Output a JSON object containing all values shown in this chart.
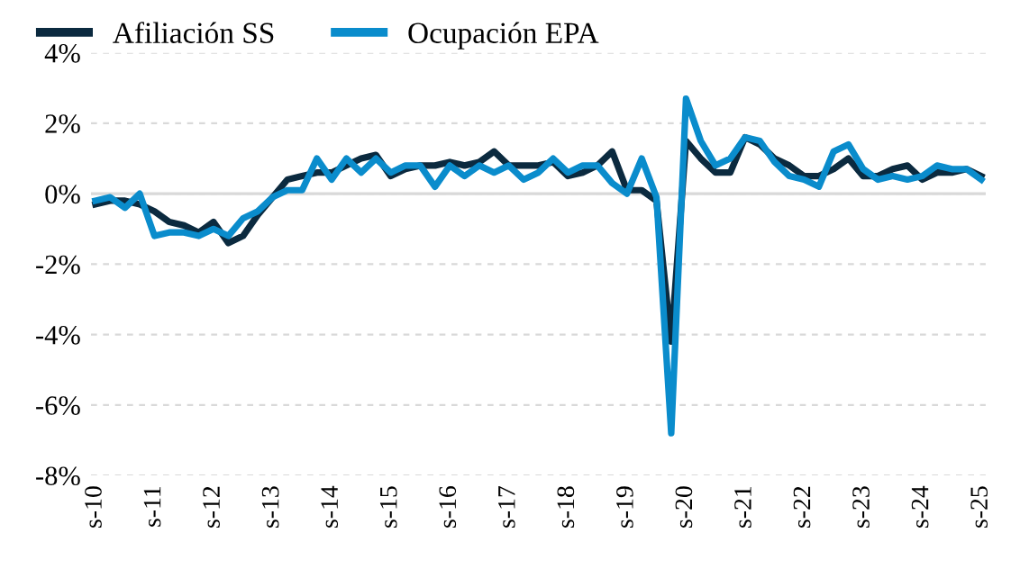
{
  "chart_data": {
    "type": "line",
    "categories": [
      "s-10",
      null,
      null,
      null,
      "s-11",
      null,
      null,
      null,
      "s-12",
      null,
      null,
      null,
      "s-13",
      null,
      null,
      null,
      "s-14",
      null,
      null,
      null,
      "s-15",
      null,
      null,
      null,
      "s-16",
      null,
      null,
      null,
      "s-17",
      null,
      null,
      null,
      "s-18",
      null,
      null,
      null,
      "s-19",
      null,
      null,
      null,
      "s-20",
      null,
      null,
      null,
      "s-21",
      null,
      null,
      null,
      "s-22",
      null,
      null,
      null,
      "s-23",
      null,
      null,
      null,
      "s-24",
      null,
      null,
      null,
      "s-25"
    ],
    "series": [
      {
        "name": "Afiliación SS",
        "color": "#0b2a3f",
        "values": [
          -0.3,
          -0.2,
          -0.2,
          -0.3,
          -0.5,
          -0.8,
          -0.9,
          -1.1,
          -0.8,
          -1.4,
          -1.2,
          -0.6,
          -0.1,
          0.4,
          0.5,
          0.6,
          0.6,
          0.8,
          1.0,
          1.1,
          0.5,
          0.7,
          0.8,
          0.8,
          0.9,
          0.8,
          0.9,
          1.2,
          0.8,
          0.8,
          0.8,
          0.9,
          0.5,
          0.6,
          0.8,
          1.2,
          0.1,
          0.1,
          -0.2,
          -4.2,
          1.5,
          1.0,
          0.6,
          0.6,
          1.6,
          1.4,
          1.0,
          0.8,
          0.5,
          0.5,
          0.7,
          1.0,
          0.5,
          0.5,
          0.7,
          0.8,
          0.4,
          0.6,
          0.6,
          0.7,
          0.5
        ]
      },
      {
        "name": "Ocupación EPA",
        "color": "#0a8ccc",
        "values": [
          -0.2,
          -0.1,
          -0.4,
          0.0,
          -1.2,
          -1.1,
          -1.1,
          -1.2,
          -1.0,
          -1.2,
          -0.7,
          -0.5,
          -0.1,
          0.1,
          0.1,
          1.0,
          0.4,
          1.0,
          0.6,
          1.0,
          0.6,
          0.8,
          0.8,
          0.2,
          0.8,
          0.5,
          0.8,
          0.6,
          0.8,
          0.4,
          0.6,
          1.0,
          0.6,
          0.8,
          0.8,
          0.3,
          0.0,
          1.0,
          -0.1,
          -6.8,
          2.7,
          1.5,
          0.8,
          1.0,
          1.6,
          1.5,
          0.9,
          0.5,
          0.4,
          0.2,
          1.2,
          1.4,
          0.7,
          0.4,
          0.5,
          0.4,
          0.5,
          0.8,
          0.7,
          0.7,
          0.4
        ]
      }
    ],
    "ylim": [
      -8,
      4
    ],
    "yticks": [
      {
        "value": -8,
        "label": "-8%"
      },
      {
        "value": -6,
        "label": "-6%"
      },
      {
        "value": -4,
        "label": "-4%"
      },
      {
        "value": -2,
        "label": "-2%"
      },
      {
        "value": 0,
        "label": "0%"
      },
      {
        "value": 2,
        "label": "2%"
      },
      {
        "value": 4,
        "label": "4%"
      }
    ],
    "grid": "y",
    "ref_lines": [
      {
        "axis": "y",
        "value": 0,
        "color": "#d9d9d9",
        "line_style": "solid"
      }
    ],
    "legend": "top left",
    "marker": "none",
    "line_style": "solid"
  }
}
